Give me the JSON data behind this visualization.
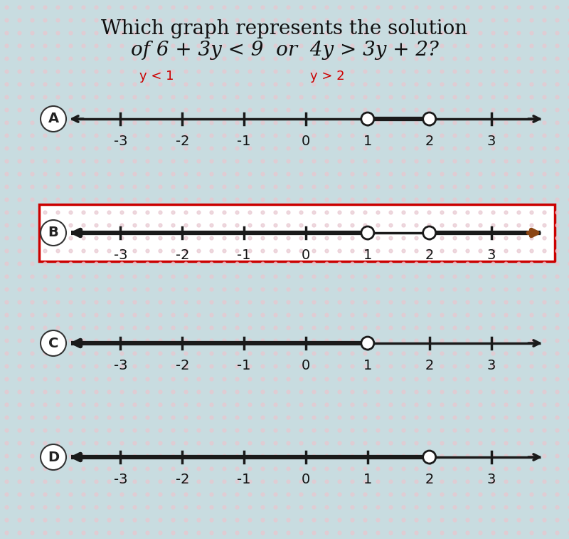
{
  "title_line1": "Which graph represents the solution",
  "title_line2": "of 6 + 3y < 9  or  4y > 3y + 2?",
  "annotation1_text": "y < 1",
  "annotation1_color": "#cc0000",
  "annotation2_text": "y > 2",
  "annotation2_color": "#cc0000",
  "bg_color": "#c8dce0",
  "dot_pattern_color1": "#e8c8d0",
  "dot_pattern_color2": "#b0d0d8",
  "number_line_color": "#1a1a1a",
  "axis_range": [
    -4,
    4
  ],
  "tick_positions": [
    -3,
    -2,
    -1,
    0,
    1,
    2,
    3
  ],
  "options": [
    "A",
    "B",
    "C",
    "D"
  ],
  "option_label_color": "#333333",
  "highlight_box_color": "#cc0000",
  "graphs": [
    {
      "label": "A",
      "open_circles": [
        1,
        2
      ],
      "shaded_segment": [
        1,
        2
      ],
      "left_arrow": false,
      "right_arrow": false,
      "shaded_left": false,
      "shaded_right": false,
      "segment_between": true,
      "bold_left": false,
      "bold_right": false
    },
    {
      "label": "B",
      "open_circles": [
        1,
        2
      ],
      "shaded_segment": null,
      "left_arrow": true,
      "right_arrow": true,
      "shaded_left": true,
      "shaded_right": true,
      "segment_between": false,
      "bold_left": true,
      "bold_right": true,
      "highlighted": true
    },
    {
      "label": "C",
      "open_circles": [
        1
      ],
      "shaded_segment": null,
      "left_arrow": true,
      "right_arrow": false,
      "shaded_left": true,
      "shaded_right": false,
      "segment_between": false,
      "bold_left": true,
      "bold_right": false
    },
    {
      "label": "D",
      "open_circles": [
        2
      ],
      "shaded_segment": null,
      "left_arrow": true,
      "right_arrow": false,
      "shaded_left": true,
      "shaded_right": false,
      "segment_between": false,
      "bold_left": true,
      "bold_right": false
    }
  ],
  "title_fontsize": 20,
  "label_fontsize": 16,
  "tick_fontsize": 14
}
